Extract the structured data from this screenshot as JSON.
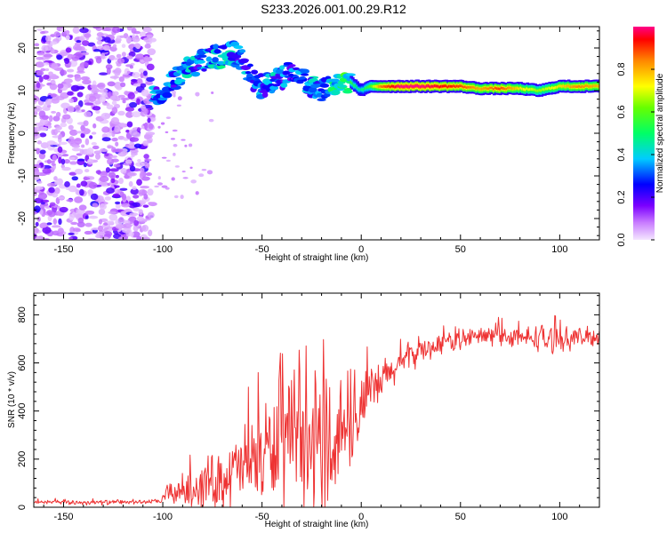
{
  "title": "S233.2026.001.00.29.R12",
  "chart_data": [
    {
      "type": "heatmap",
      "name": "spectrogram",
      "xlabel": "Height of straight line (km)",
      "ylabel": "Frequency (Hz)",
      "xlim": [
        -165,
        120
      ],
      "ylim": [
        -25,
        25
      ],
      "xticks": [
        -150,
        -100,
        -50,
        0,
        50,
        100
      ],
      "yticks": [
        -20,
        -10,
        0,
        10,
        20
      ],
      "colorbar": {
        "label": "Normalized spectral amplitude",
        "range": [
          0,
          1
        ],
        "ticks": [
          0.0,
          0.2,
          0.4,
          0.6,
          0.8
        ]
      },
      "ridge": {
        "x": [
          -105,
          -100,
          -95,
          -90,
          -85,
          -80,
          -75,
          -70,
          -65,
          -60,
          -55,
          -50,
          -45,
          -40,
          -35,
          -30,
          -25,
          -20,
          -15,
          -10,
          -5,
          0,
          5,
          10,
          20,
          30,
          40,
          50,
          60,
          70,
          80,
          90,
          100,
          110,
          118
        ],
        "y": [
          9,
          10,
          12,
          14,
          16,
          17,
          18,
          18,
          19,
          17,
          13,
          11,
          12,
          13,
          15,
          13,
          11,
          10,
          11,
          12,
          12,
          10,
          11,
          11,
          11,
          11,
          11,
          11,
          10.5,
          10.5,
          10.5,
          10,
          11,
          11,
          11
        ],
        "amplitude": [
          0.3,
          0.35,
          0.3,
          0.35,
          0.35,
          0.3,
          0.35,
          0.4,
          0.35,
          0.3,
          0.35,
          0.3,
          0.35,
          0.3,
          0.3,
          0.3,
          0.35,
          0.35,
          0.45,
          0.5,
          0.5,
          0.4,
          0.55,
          0.8,
          0.95,
          0.95,
          0.9,
          0.85,
          0.75,
          0.85,
          0.7,
          0.6,
          0.7,
          0.8,
          0.75
        ]
      }
    },
    {
      "type": "line",
      "name": "snr",
      "xlabel": "Height of straight line (km)",
      "ylabel": "SNR (10 * v/v)",
      "xlim": [
        -165,
        120
      ],
      "ylim": [
        0,
        890
      ],
      "xticks": [
        -150,
        -100,
        -50,
        0,
        50,
        100
      ],
      "yticks": [
        0,
        200,
        400,
        600,
        800
      ],
      "color": "#ee3333",
      "envelope": {
        "x": [
          -165,
          -150,
          -130,
          -110,
          -101,
          -98,
          -95,
          -90,
          -85,
          -80,
          -75,
          -70,
          -65,
          -60,
          -55,
          -50,
          -45,
          -40,
          -35,
          -30,
          -25,
          -20,
          -18,
          -16,
          -14,
          -12,
          -10,
          -8,
          -5,
          -2,
          0,
          5,
          10,
          15,
          20,
          25,
          30,
          40,
          50,
          60,
          70,
          80,
          90,
          95,
          100,
          110,
          120
        ],
        "mean": [
          22,
          20,
          20,
          22,
          25,
          55,
          60,
          70,
          80,
          95,
          110,
          120,
          140,
          170,
          190,
          220,
          240,
          250,
          270,
          250,
          230,
          240,
          330,
          280,
          240,
          300,
          350,
          300,
          350,
          380,
          420,
          470,
          520,
          560,
          600,
          630,
          650,
          680,
          700,
          710,
          715,
          700,
          710,
          690,
          700,
          705,
          710
        ],
        "amplitude": [
          10,
          12,
          12,
          10,
          10,
          50,
          60,
          80,
          100,
          120,
          140,
          150,
          170,
          200,
          220,
          260,
          280,
          290,
          320,
          320,
          330,
          360,
          420,
          360,
          300,
          280,
          260,
          220,
          200,
          180,
          160,
          140,
          110,
          90,
          80,
          70,
          60,
          55,
          50,
          50,
          55,
          50,
          70,
          80,
          60,
          50,
          50
        ]
      }
    }
  ]
}
